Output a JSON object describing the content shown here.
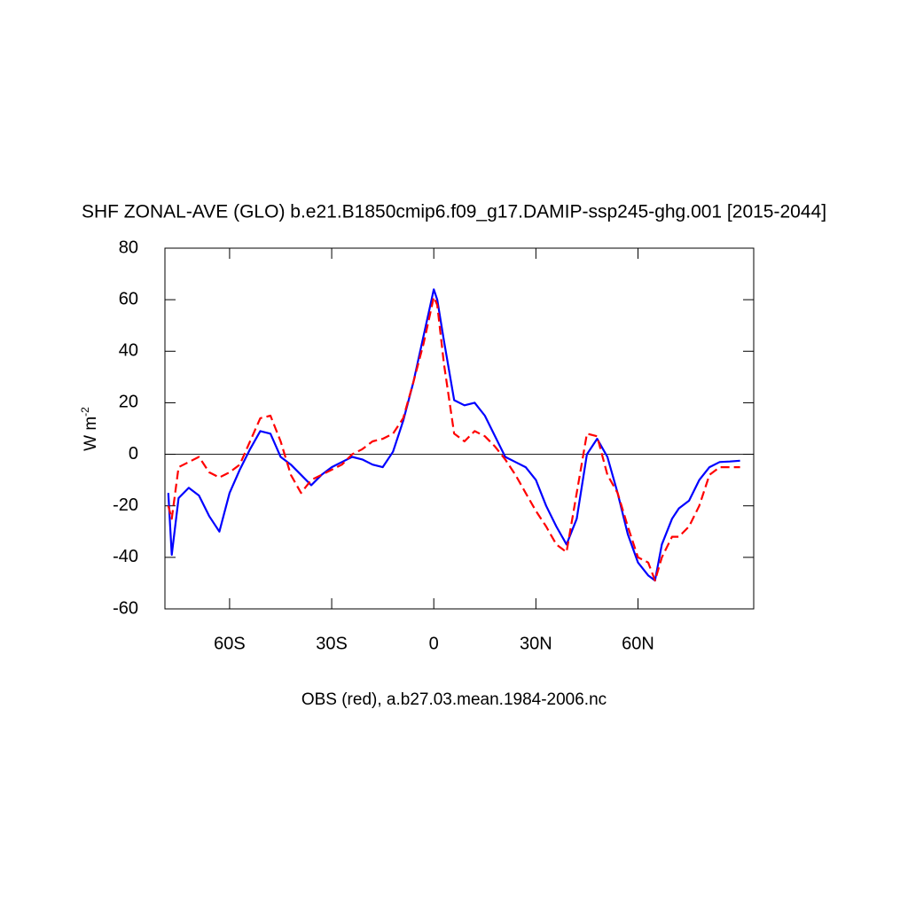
{
  "chart_data": {
    "type": "line",
    "title": "SHF ZONAL-AVE (GLO) b.e21.B1850cmip6.f09_g17.DAMIP-ssp245-ghg.001 [2015-2044]",
    "y_label": "W m",
    "y_label_sup": "-2",
    "caption": "OBS (red), a.b27.03.mean.1984-2006.nc",
    "x": [
      -78,
      -77,
      -75,
      -72,
      -69,
      -66,
      -63,
      -60,
      -57,
      -54,
      -51,
      -48,
      -45,
      -42,
      -39,
      -36,
      -33,
      -30,
      -27,
      -24,
      -21,
      -18,
      -15,
      -12,
      -9,
      -6,
      -3,
      -1,
      0,
      1,
      3,
      6,
      9,
      12,
      15,
      18,
      21,
      24,
      27,
      30,
      33,
      36,
      39,
      42,
      45,
      48,
      51,
      54,
      57,
      60,
      63,
      65,
      67,
      70,
      72,
      75,
      78,
      81,
      84,
      87,
      90
    ],
    "series": [
      {
        "color": "#0000ff",
        "dashed": false,
        "values": [
          -15,
          -39,
          -17,
          -13,
          -16,
          -24,
          -30,
          -15,
          -6,
          2,
          9,
          8,
          -1,
          -4,
          -8,
          -12,
          -8,
          -5,
          -3,
          -1,
          -2,
          -4,
          -5,
          1,
          13,
          28,
          46,
          58,
          64,
          60,
          44,
          21,
          19,
          20,
          15,
          7,
          -1,
          -3,
          -5,
          -10,
          -20,
          -28,
          -35,
          -25,
          0,
          6,
          -1,
          -15,
          -31,
          -42,
          -47,
          -49,
          -35,
          -25,
          -21,
          -18,
          -10,
          -5,
          -3,
          -2.8,
          -2.5
        ]
      },
      {
        "color": "#ff0000",
        "dashed": true,
        "values": [
          -20,
          -25,
          -5,
          -3,
          -1,
          -7,
          -9,
          -7,
          -4,
          5,
          14,
          15,
          5,
          -8,
          -15,
          -10,
          -8,
          -6,
          -4,
          0,
          2,
          5,
          6,
          8,
          14,
          28,
          43,
          55,
          61,
          58,
          35,
          8,
          5,
          9,
          7,
          3,
          -2,
          -8,
          -15,
          -22,
          -28,
          -35,
          -38,
          -15,
          8,
          7,
          -8,
          -15,
          -28,
          -40,
          -42,
          -49,
          -40,
          -32,
          -32,
          -28,
          -20,
          -8,
          -5,
          -5,
          -5
        ]
      }
    ],
    "xlim": [
      -79,
      94
    ],
    "xticks": [
      {
        "value": -60,
        "label": "60S"
      },
      {
        "value": -30,
        "label": "30S"
      },
      0,
      {
        "value": 30,
        "label": "30N"
      },
      {
        "value": 60,
        "label": "60N"
      }
    ],
    "ylim": [
      -60,
      80
    ],
    "yticks": [
      80,
      60,
      40,
      20,
      0,
      -20,
      -40,
      -60
    ],
    "zero_line": 0
  }
}
